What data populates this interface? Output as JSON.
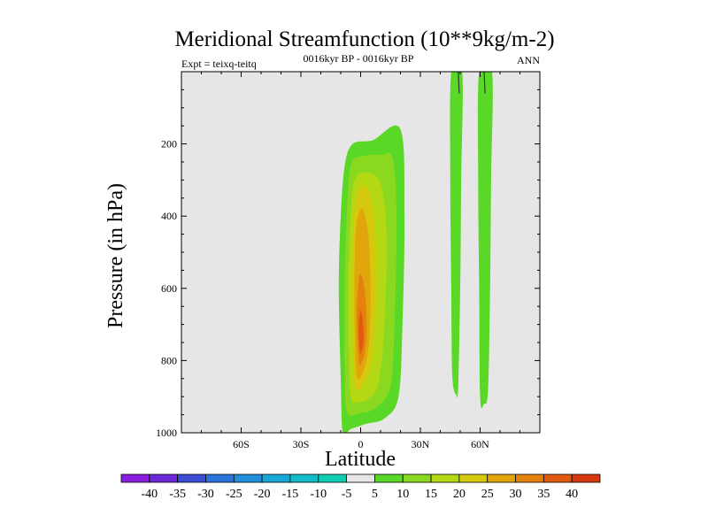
{
  "chart_data": {
    "type": "contour",
    "title": "Meridional Streamfunction (10**9kg/m-2)",
    "subtitle_left": "Expt = teixq-teitq",
    "subtitle_center": "0016kyr BP - 0016kyr BP",
    "subtitle_right": "ANN",
    "xlabel": "Latitude",
    "ylabel": "Pressure (in hPa)",
    "xlim": [
      -90,
      90
    ],
    "ylim": [
      1000,
      0
    ],
    "x_ticks": [
      {
        "value": -60,
        "label": "60S"
      },
      {
        "value": -30,
        "label": "30S"
      },
      {
        "value": 0,
        "label": "0"
      },
      {
        "value": 30,
        "label": "30N"
      },
      {
        "value": 60,
        "label": "60N"
      }
    ],
    "y_ticks": [
      {
        "value": 200,
        "label": "200"
      },
      {
        "value": 400,
        "label": "400"
      },
      {
        "value": 600,
        "label": "600"
      },
      {
        "value": 800,
        "label": "800"
      },
      {
        "value": 1000,
        "label": "1000"
      }
    ],
    "background_color": "#e6e6e6",
    "colorbar": {
      "labels": [
        "-40",
        "-35",
        "-30",
        "-25",
        "-20",
        "-15",
        "-10",
        "-5",
        "5",
        "10",
        "15",
        "20",
        "25",
        "30",
        "35",
        "40"
      ],
      "colors": [
        "#8a1ee0",
        "#6a2ad8",
        "#3c4ed6",
        "#2a74dc",
        "#1f8fdc",
        "#18a8d8",
        "#12bcc8",
        "#10ccb0",
        "#e6e6e6",
        "#5ad828",
        "#8ad820",
        "#b4d814",
        "#d6c80c",
        "#e0a60c",
        "#e4820e",
        "#e25a10",
        "#d83a10"
      ]
    },
    "features": [
      {
        "name": "tropical-cell",
        "levels": [
          {
            "level": 5,
            "color": "#5ad828",
            "outline": [
              [
                -9,
                1000
              ],
              [
                -10,
                850
              ],
              [
                -11,
                600
              ],
              [
                -10,
                400
              ],
              [
                -8,
                260
              ],
              [
                -4,
                200
              ],
              [
                6,
                190
              ],
              [
                20,
                160
              ],
              [
                22,
                400
              ],
              [
                21,
                700
              ],
              [
                19,
                900
              ],
              [
                12,
                960
              ],
              [
                3,
                975
              ],
              [
                -5,
                990
              ]
            ]
          },
          {
            "level": 10,
            "color": "#8ad820",
            "outline": [
              [
                -7,
                940
              ],
              [
                -8,
                800
              ],
              [
                -8,
                600
              ],
              [
                -7,
                400
              ],
              [
                -5,
                260
              ],
              [
                0,
                235
              ],
              [
                10,
                230
              ],
              [
                16,
                240
              ],
              [
                18,
                400
              ],
              [
                17,
                700
              ],
              [
                15,
                870
              ],
              [
                8,
                930
              ],
              [
                0,
                945
              ]
            ]
          },
          {
            "level": 15,
            "color": "#b4d814",
            "outline": [
              [
                -5,
                900
              ],
              [
                -6,
                750
              ],
              [
                -6,
                550
              ],
              [
                -5,
                400
              ],
              [
                -3,
                300
              ],
              [
                3,
                280
              ],
              [
                10,
                310
              ],
              [
                13,
                450
              ],
              [
                12,
                700
              ],
              [
                9,
                860
              ],
              [
                4,
                905
              ],
              [
                -1,
                915
              ]
            ]
          },
          {
            "level": 20,
            "color": "#d6c80c",
            "outline": [
              [
                -3,
                870
              ],
              [
                -4,
                700
              ],
              [
                -4,
                500
              ],
              [
                -3,
                380
              ],
              [
                0,
                320
              ],
              [
                4,
                330
              ],
              [
                7,
                420
              ],
              [
                8,
                600
              ],
              [
                6,
                780
              ],
              [
                2,
                860
              ]
            ]
          },
          {
            "level": 25,
            "color": "#e0a60c",
            "outline": [
              [
                -2,
                840
              ],
              [
                -3,
                700
              ],
              [
                -3,
                520
              ],
              [
                -2,
                420
              ],
              [
                1,
                380
              ],
              [
                4,
                460
              ],
              [
                5,
                620
              ],
              [
                4,
                760
              ],
              [
                1,
                835
              ]
            ]
          },
          {
            "level": 30,
            "color": "#e4820e",
            "outline": [
              [
                -1,
                800
              ],
              [
                -2,
                680
              ],
              [
                -1,
                580
              ],
              [
                0,
                560
              ],
              [
                2,
                600
              ],
              [
                3,
                700
              ],
              [
                2,
                780
              ],
              [
                0,
                810
              ]
            ]
          },
          {
            "level": 35,
            "color": "#e25a10",
            "outline": [
              [
                -0.5,
                770
              ],
              [
                -1,
                700
              ],
              [
                0,
                660
              ],
              [
                1,
                690
              ],
              [
                1.5,
                740
              ],
              [
                0.5,
                775
              ]
            ]
          }
        ]
      },
      {
        "name": "band-45N",
        "levels": [
          {
            "level": 5,
            "color": "#5ad828",
            "outline": [
              [
                45.5,
                0
              ],
              [
                51,
                0
              ],
              [
                50.5,
                300
              ],
              [
                50,
                600
              ],
              [
                49,
                870
              ],
              [
                48,
                895
              ],
              [
                46,
                840
              ],
              [
                45.5,
                600
              ],
              [
                45,
                300
              ]
            ]
          }
        ]
      },
      {
        "name": "band-62N",
        "levels": [
          {
            "level": 5,
            "color": "#5ad828",
            "outline": [
              [
                59.5,
                0
              ],
              [
                66,
                0
              ],
              [
                65.5,
                300
              ],
              [
                65,
                600
              ],
              [
                64,
                880
              ],
              [
                62,
                920
              ],
              [
                60,
                900
              ],
              [
                59.5,
                600
              ],
              [
                59,
                300
              ]
            ]
          }
        ]
      }
    ],
    "contour_lines": [
      {
        "level": 5,
        "points": [
          [
            49,
            0
          ],
          [
            49.5,
            60
          ]
        ]
      },
      {
        "level": 5,
        "points": [
          [
            62,
            0
          ],
          [
            62.5,
            60
          ]
        ]
      }
    ]
  }
}
